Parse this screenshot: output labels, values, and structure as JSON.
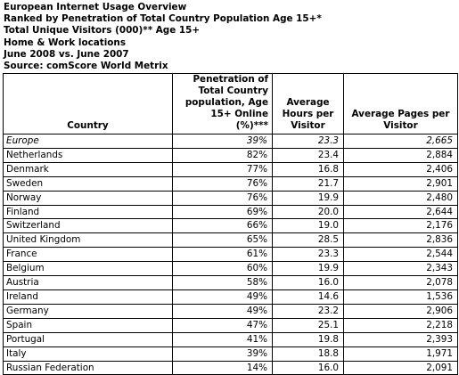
{
  "header": {
    "lines": [
      "European Internet Usage Overview",
      "Ranked by Penetration of Total Country Population Age 15+*",
      "Total Unique Visitors (000)** Age 15+",
      "Home & Work locations",
      "June 2008 vs. June 2007",
      "Source: comScore World Metrix"
    ]
  },
  "table": {
    "columns": [
      "Country",
      "Penetration of Total Country population, Age 15+ Online (%)***",
      "Average Hours per Visitor",
      "Average Pages per Visitor"
    ],
    "rows": [
      [
        "Europe",
        "39%",
        "23.3",
        "2,665"
      ],
      [
        "Netherlands",
        "82%",
        "23.4",
        "2,884"
      ],
      [
        "Denmark",
        "77%",
        "16.8",
        "2,406"
      ],
      [
        "Sweden",
        "76%",
        "21.7",
        "2,901"
      ],
      [
        "Norway",
        "76%",
        "19.9",
        "2,480"
      ],
      [
        "Finland",
        "69%",
        "20.0",
        "2,644"
      ],
      [
        "Switzerland",
        "66%",
        "19.0",
        "2,176"
      ],
      [
        "United Kingdom",
        "65%",
        "28.5",
        "2,836"
      ],
      [
        "France",
        "61%",
        "23.3",
        "2,544"
      ],
      [
        "Belgium",
        "60%",
        "19.9",
        "2,343"
      ],
      [
        "Austria",
        "58%",
        "16.0",
        "2,078"
      ],
      [
        "Ireland",
        "49%",
        "14.6",
        "1,536"
      ],
      [
        "Germany",
        "49%",
        "23.2",
        "2,906"
      ],
      [
        "Spain",
        "47%",
        "25.1",
        "2,218"
      ],
      [
        "Portugal",
        "41%",
        "19.8",
        "2,393"
      ],
      [
        "Italy",
        "39%",
        "18.8",
        "1,971"
      ],
      [
        "Russian Federation",
        "14%",
        "16.0",
        "2,091"
      ]
    ]
  }
}
